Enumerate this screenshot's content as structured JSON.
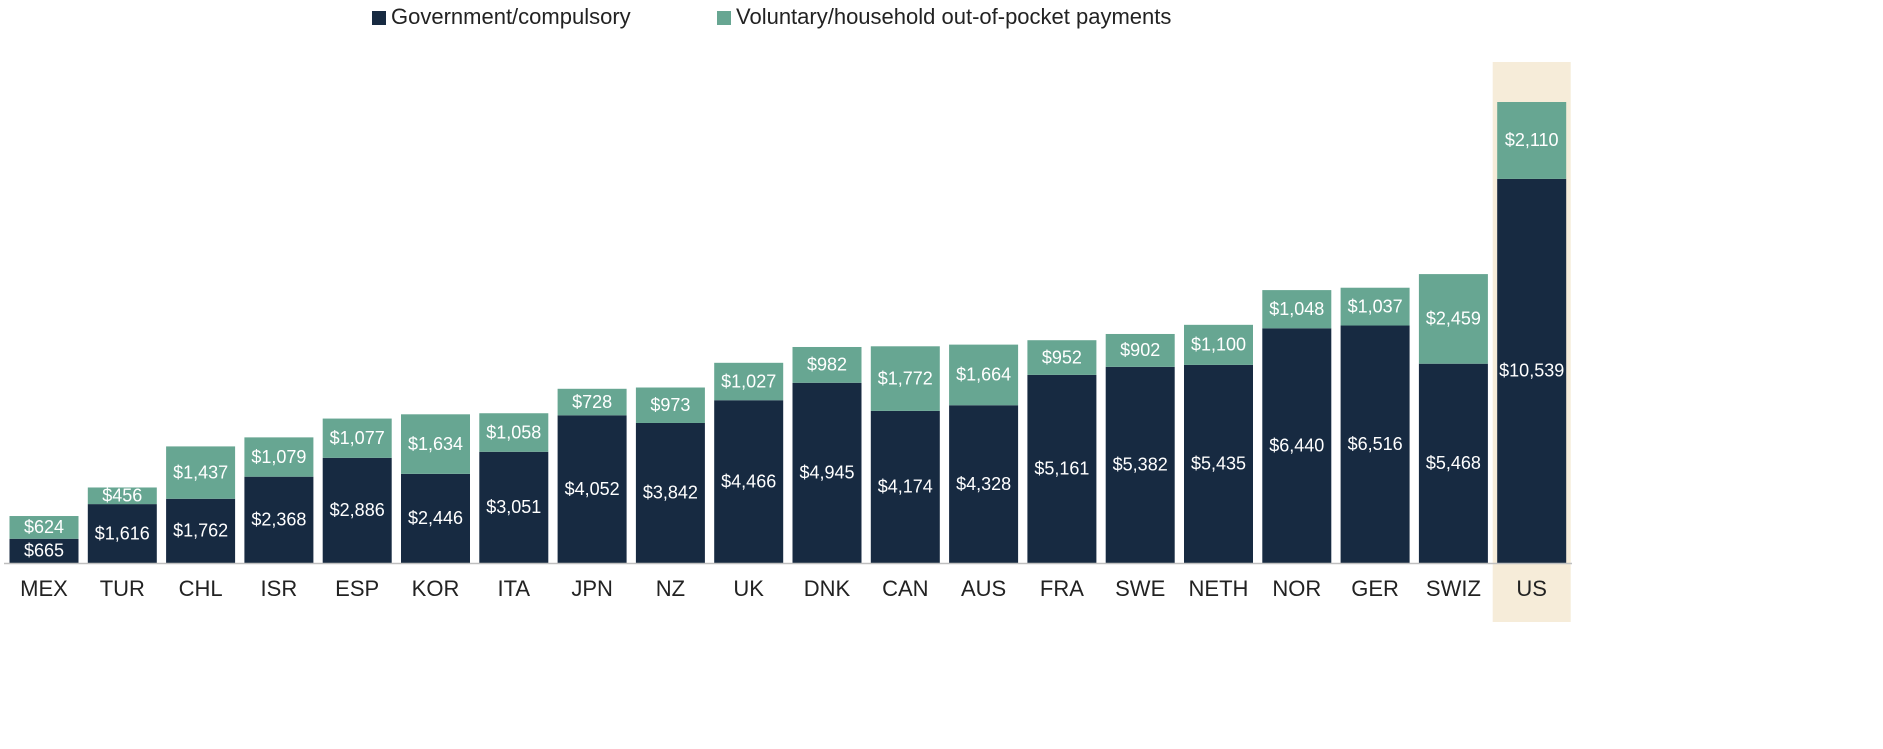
{
  "chart_data": {
    "type": "stacked_bar",
    "categories": [
      "MEX",
      "TUR",
      "CHL",
      "ISR",
      "ESP",
      "KOR",
      "ITA",
      "JPN",
      "NZ",
      "UK",
      "DNK",
      "CAN",
      "AUS",
      "FRA",
      "SWE",
      "NETH",
      "NOR",
      "GER",
      "SWIZ",
      "US"
    ],
    "series": [
      {
        "name": "Government/compulsory",
        "color": "#172a41",
        "values": [
          665,
          1616,
          1762,
          2368,
          2886,
          2446,
          3051,
          4052,
          3842,
          4466,
          4945,
          4174,
          4328,
          5161,
          5382,
          5435,
          6440,
          6516,
          5468,
          10539
        ],
        "value_labels": [
          "$665",
          "$1,616",
          "$1,762",
          "$2,368",
          "$2,886",
          "$2,446",
          "$3,051",
          "$4,052",
          "$3,842",
          "$4,466",
          "$4,945",
          "$4,174",
          "$4,328",
          "$5,161",
          "$5,382",
          "$5,435",
          "$6,440",
          "$6,516",
          "$5,468",
          "$10,539"
        ]
      },
      {
        "name": "Voluntary/household out-of-pocket payments",
        "color": "#67a692",
        "values": [
          624,
          456,
          1437,
          1079,
          1077,
          1634,
          1058,
          728,
          973,
          1027,
          982,
          1772,
          1664,
          952,
          902,
          1100,
          1048,
          1037,
          2459,
          2110
        ],
        "value_labels": [
          "$624",
          "$456",
          "$1,437",
          "$1,079",
          "$1,077",
          "$1,634",
          "$1,058",
          "$728",
          "$973",
          "$1,027",
          "$982",
          "$1,772",
          "$1,664",
          "$952",
          "$902",
          "$1,100",
          "$1,048",
          "$1,037",
          "$2,459",
          "$2,110"
        ]
      }
    ],
    "highlight_index": 19,
    "highlight_color": "#f6ecd9"
  }
}
